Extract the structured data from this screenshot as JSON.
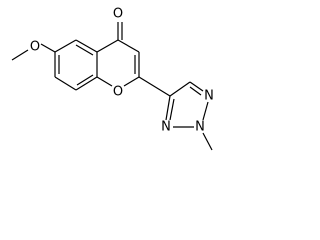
{
  "atoms": {
    "methoxy_oxygen": "O",
    "carbonyl_oxygen": "O",
    "ring_oxygen": "O",
    "triazole_n1": "N",
    "triazole_n2": "N",
    "triazole_n3": "N"
  }
}
